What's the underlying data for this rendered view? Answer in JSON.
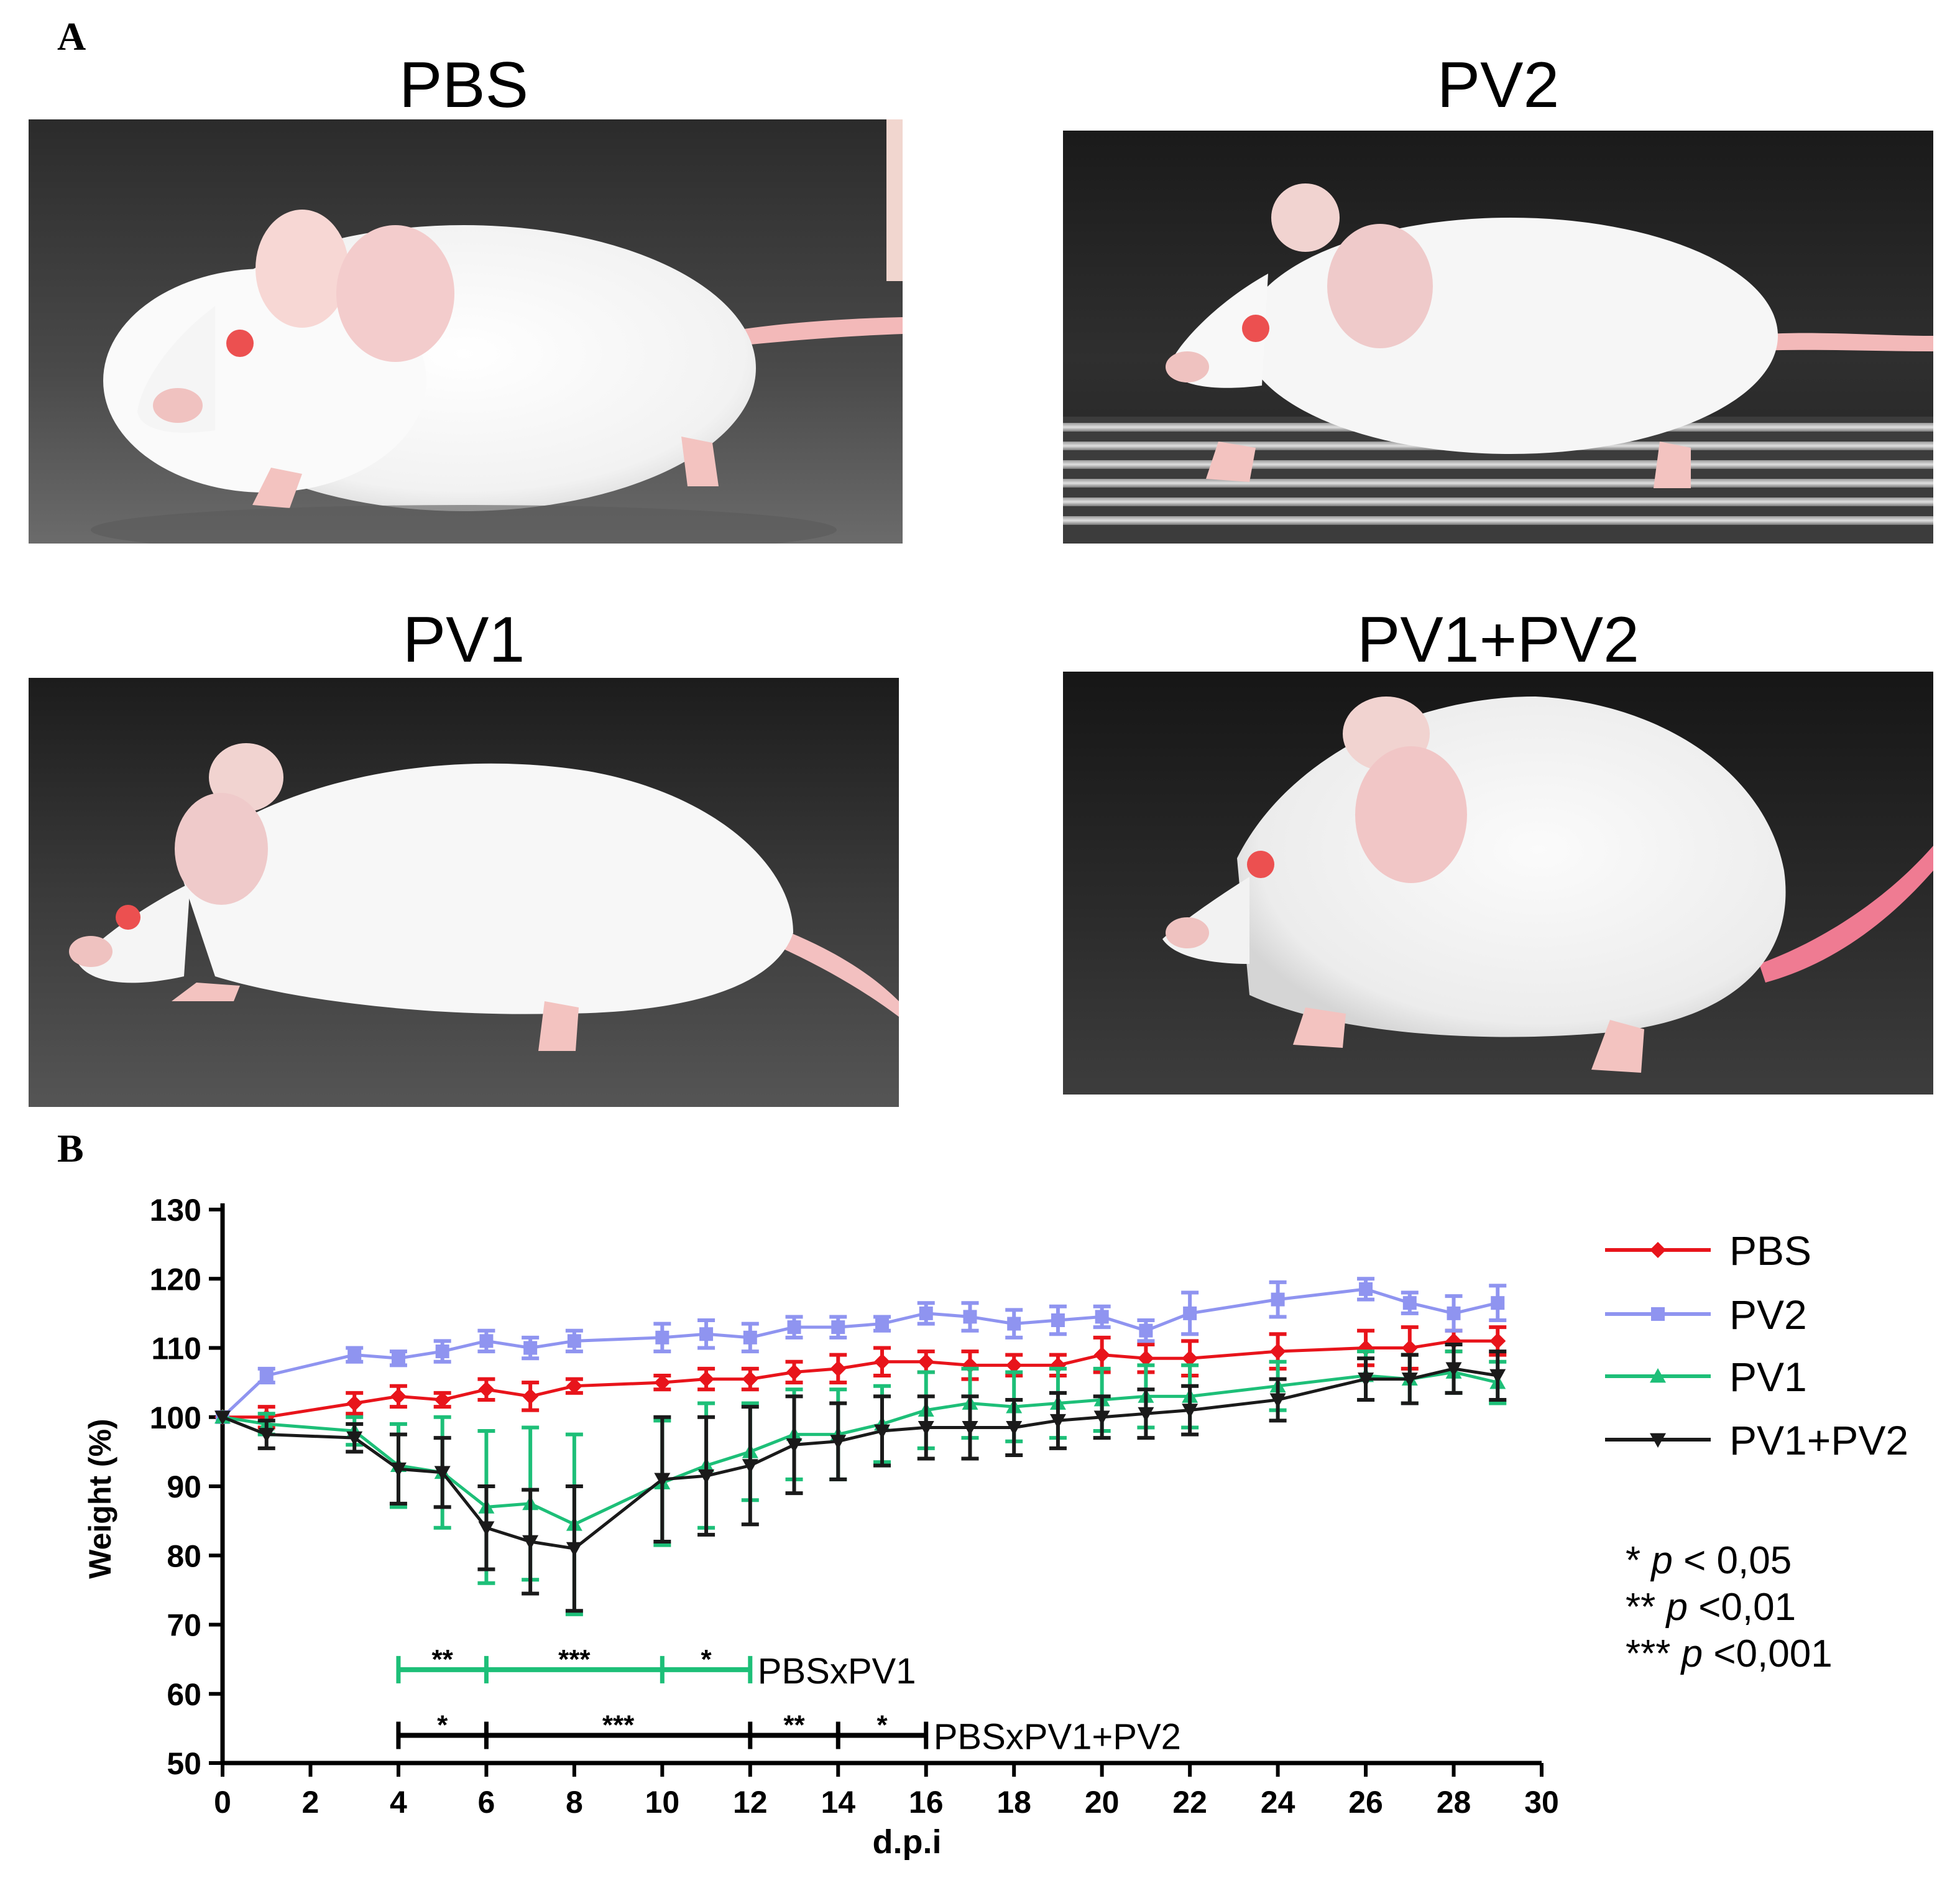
{
  "panel_a_label": "A",
  "panel_b_label": "B",
  "photos": [
    {
      "title": "PBS"
    },
    {
      "title": "PV2"
    },
    {
      "title": "PV1"
    },
    {
      "title": "PV1+PV2"
    }
  ],
  "chart_data": {
    "type": "line",
    "xlabel": "d.p.i",
    "ylabel": "Weight (%)",
    "xlim": [
      0,
      30
    ],
    "ylim": [
      50,
      130
    ],
    "xticks": [
      0,
      2,
      4,
      6,
      8,
      10,
      12,
      14,
      16,
      18,
      20,
      22,
      24,
      26,
      28,
      30
    ],
    "yticks": [
      50,
      60,
      70,
      80,
      90,
      100,
      110,
      120,
      130
    ],
    "series": [
      {
        "name": "PBS",
        "color": "#e8141b",
        "marker": "diamond",
        "x": [
          0,
          1,
          3,
          4,
          5,
          6,
          7,
          8,
          10,
          11,
          12,
          13,
          14,
          15,
          16,
          17,
          18,
          19,
          20,
          21,
          22,
          24,
          26,
          27,
          28,
          29
        ],
        "y": [
          100,
          100,
          102,
          103,
          102.5,
          104,
          103,
          104.5,
          105,
          105.5,
          105.5,
          106.5,
          107,
          108,
          108,
          107.5,
          107.5,
          107.5,
          109,
          108.5,
          108.5,
          109.5,
          110,
          110,
          111,
          111
        ],
        "err": [
          0,
          1.5,
          1.5,
          1.5,
          1,
          1.5,
          2,
          1,
          1,
          1.5,
          1.5,
          1.5,
          2,
          2,
          1.5,
          2,
          1.5,
          1.5,
          2.5,
          2,
          2.5,
          2.5,
          2.5,
          3,
          1.5,
          2
        ]
      },
      {
        "name": "PV2",
        "color": "#8f94f0",
        "marker": "square",
        "x": [
          0,
          1,
          3,
          4,
          5,
          6,
          7,
          8,
          10,
          11,
          12,
          13,
          14,
          15,
          16,
          17,
          18,
          19,
          20,
          21,
          22,
          24,
          26,
          27,
          28,
          29
        ],
        "y": [
          100,
          106,
          109,
          108.5,
          109.5,
          111,
          110,
          111,
          111.5,
          112,
          111.5,
          113,
          113,
          113.5,
          115,
          114.5,
          113.5,
          114,
          114.5,
          112.5,
          115,
          117,
          118.5,
          116.5,
          115,
          116.5
        ],
        "err": [
          0,
          1,
          1,
          1,
          1.5,
          1.5,
          1.5,
          1.5,
          2,
          2,
          2,
          1.5,
          1.5,
          1,
          1.5,
          2,
          2,
          2,
          1.5,
          1.5,
          3,
          2.5,
          1.5,
          1.5,
          2.5,
          2.5
        ]
      },
      {
        "name": "PV1",
        "color": "#1dbf78",
        "marker": "triangle",
        "x": [
          0,
          1,
          3,
          4,
          5,
          6,
          7,
          8,
          10,
          11,
          12,
          13,
          14,
          15,
          16,
          17,
          18,
          19,
          20,
          21,
          22,
          24,
          26,
          27,
          28,
          29
        ],
        "y": [
          100,
          99,
          98,
          93,
          92,
          87,
          87.5,
          84.5,
          90.5,
          93,
          95,
          97.5,
          97.5,
          99,
          101,
          102,
          101.5,
          102,
          102.5,
          103,
          103,
          104.5,
          106,
          105.5,
          106.5,
          105
        ],
        "err": [
          0,
          1.5,
          2,
          6,
          8,
          11,
          11,
          13,
          9,
          9,
          7,
          6.5,
          6.5,
          5.5,
          5.5,
          5,
          5,
          5,
          4.5,
          4.5,
          4.5,
          3.5,
          3.5,
          3.5,
          3,
          3
        ]
      },
      {
        "name": "PV1+PV2",
        "color": "#1a1a1a",
        "marker": "triangle-down",
        "x": [
          0,
          1,
          3,
          4,
          5,
          6,
          7,
          8,
          10,
          11,
          12,
          13,
          14,
          15,
          16,
          17,
          18,
          19,
          20,
          21,
          22,
          24,
          26,
          27,
          28,
          29
        ],
        "y": [
          100,
          97.5,
          97,
          92.5,
          92,
          84,
          82,
          81,
          91,
          91.5,
          93,
          96,
          96.5,
          98,
          98.5,
          98.5,
          98.5,
          99.5,
          100,
          100.5,
          101,
          102.5,
          105.5,
          105.5,
          107,
          106
        ],
        "err": [
          0,
          2,
          2,
          5,
          5,
          6,
          7.5,
          9,
          9,
          8.5,
          8.5,
          7,
          5.5,
          5,
          4.5,
          4.5,
          4,
          4,
          3,
          3.5,
          3.5,
          3,
          3,
          3.5,
          3.5,
          3.5
        ]
      }
    ],
    "significance": [
      {
        "label": "PBSxPV1",
        "color": "#1dbf78",
        "y": 63.5,
        "ticks": [
          4,
          6,
          10,
          12
        ],
        "segments": [
          {
            "x1": 4,
            "x2": 6,
            "stars": "**"
          },
          {
            "x1": 6,
            "x2": 10,
            "stars": "***"
          },
          {
            "x1": 10,
            "x2": 12,
            "stars": "*"
          }
        ]
      },
      {
        "label": "PBSxPV1+PV2",
        "color": "#000000",
        "y": 54,
        "ticks": [
          4,
          6,
          12,
          14,
          16
        ],
        "segments": [
          {
            "x1": 4,
            "x2": 6,
            "stars": "*"
          },
          {
            "x1": 6,
            "x2": 12,
            "stars": "***"
          },
          {
            "x1": 12,
            "x2": 14,
            "stars": "**"
          },
          {
            "x1": 14,
            "x2": 16,
            "stars": "*"
          }
        ]
      }
    ],
    "legend_position": "right",
    "pvalue_notes": [
      {
        "stars": "*",
        "p": "p",
        "rest": " < 0,05"
      },
      {
        "stars": "**",
        "p": "p",
        "rest": " <0,01"
      },
      {
        "stars": "***",
        "p": "p",
        "rest": " <0,001"
      }
    ]
  }
}
